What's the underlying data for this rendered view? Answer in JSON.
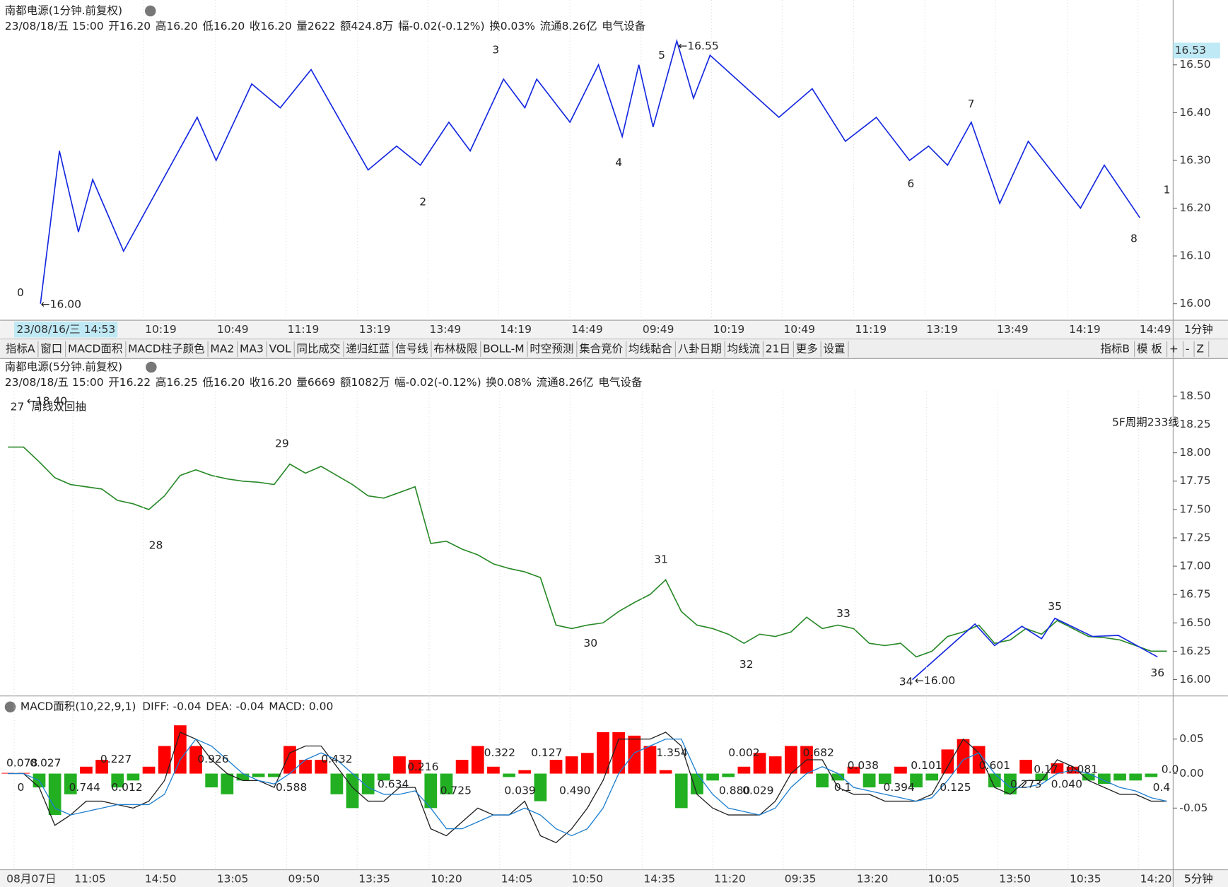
{
  "chart_data": [
    {
      "type": "zigzag",
      "title": "南都电源(1分钟.前复权)",
      "quote": [
        "23/08/18/五 15:00",
        "开16.20",
        "高16.20",
        "低16.20",
        "收16.20",
        "量2622",
        "额424.8万",
        "幅-0.02(-0.12%)",
        "换0.03%",
        "流通8.26亿",
        "电气设备"
      ],
      "x": [
        17,
        25,
        33,
        39,
        52,
        83,
        91,
        106,
        118,
        131,
        155,
        167,
        177,
        189,
        198,
        212,
        221,
        226,
        240,
        252,
        262,
        269,
        275,
        285,
        292,
        299,
        328,
        342,
        356,
        369,
        383,
        391,
        399,
        409,
        421,
        433,
        455,
        465,
        480
      ],
      "values": [
        16.0,
        16.32,
        16.15,
        16.26,
        16.11,
        16.39,
        16.3,
        16.46,
        16.41,
        16.49,
        16.28,
        16.33,
        16.29,
        16.38,
        16.32,
        16.47,
        16.41,
        16.47,
        16.38,
        16.5,
        16.35,
        16.5,
        16.37,
        16.55,
        16.43,
        16.52,
        16.39,
        16.45,
        16.34,
        16.39,
        16.3,
        16.33,
        16.29,
        16.38,
        16.21,
        16.34,
        16.2,
        16.29,
        16.18
      ],
      "color": "#1428e0",
      "xlim": [
        0,
        494
      ],
      "xticks": [
        {
          "value": 67.7,
          "label": "10:19"
        },
        {
          "value": 98,
          "label": "10:49"
        },
        {
          "value": 127.7,
          "label": "11:19"
        },
        {
          "value": 157.8,
          "label": "13:19"
        },
        {
          "value": 187.5,
          "label": "13:49"
        },
        {
          "value": 217.2,
          "label": "14:19"
        },
        {
          "value": 247.2,
          "label": "14:49"
        },
        {
          "value": 277.2,
          "label": "09:49"
        },
        {
          "value": 306.9,
          "label": "10:19"
        },
        {
          "value": 336.6,
          "label": "10:49"
        },
        {
          "value": 366.7,
          "label": "11:19"
        },
        {
          "value": 396.7,
          "label": "13:19"
        },
        {
          "value": 426.4,
          "label": "13:49"
        },
        {
          "value": 456.8,
          "label": "14:19"
        },
        {
          "value": 486.5,
          "label": "14:49"
        }
      ],
      "ylim": [
        15.972,
        16.562
      ],
      "yticks": [
        {
          "value": 16,
          "label": "16.00"
        },
        {
          "value": 16.1,
          "label": "16.10"
        },
        {
          "value": 16.2,
          "label": "16.20"
        },
        {
          "value": 16.3,
          "label": "16.30"
        },
        {
          "value": 16.4,
          "label": "16.40"
        },
        {
          "value": 16.5,
          "label": "16.50"
        }
      ],
      "last_price": 16.53,
      "annotations": [
        "0",
        "2",
        "3",
        "4",
        "5",
        "6",
        "7",
        "8",
        "1",
        "←16.00",
        "←16.55"
      ],
      "cursor_label": "23/08/16/三 14:53",
      "period": "1分钟",
      "grid_x": true
    },
    {
      "type": "line",
      "title": "南都电源(5分钟.前复权)",
      "quote": [
        "23/08/18/五 15:00",
        "开16.22",
        "高16.25",
        "低16.20",
        "收16.20",
        "量6669",
        "额1082万",
        "幅-0.02(-0.12%)",
        "换0.08%",
        "流通8.26亿",
        "电气设备"
      ],
      "x": [
        0,
        1,
        2,
        3,
        4,
        5,
        6,
        7,
        8,
        9,
        10,
        11,
        12,
        13,
        14,
        15,
        16,
        17,
        18,
        19,
        20,
        21,
        22,
        23,
        24,
        25,
        26,
        27,
        28,
        29,
        30,
        31,
        32,
        33,
        34,
        35,
        36,
        37,
        38,
        39,
        40,
        41,
        42,
        43,
        44,
        45,
        46,
        47,
        48,
        49,
        50,
        51,
        52,
        53,
        54,
        55,
        56,
        57,
        58,
        59,
        60,
        61,
        62,
        63,
        64,
        65,
        66,
        67,
        68,
        69,
        70,
        71,
        72,
        73,
        74
      ],
      "values": [
        18.05,
        18.05,
        17.92,
        17.78,
        17.72,
        17.7,
        17.68,
        17.58,
        17.55,
        17.5,
        17.62,
        17.8,
        17.85,
        17.8,
        17.77,
        17.75,
        17.74,
        17.72,
        17.9,
        17.82,
        17.88,
        17.8,
        17.72,
        17.62,
        17.6,
        17.65,
        17.7,
        17.2,
        17.22,
        17.15,
        17.1,
        17.02,
        16.98,
        16.95,
        16.9,
        16.48,
        16.45,
        16.48,
        16.5,
        16.6,
        16.68,
        16.75,
        16.88,
        16.6,
        16.48,
        16.45,
        16.4,
        16.32,
        16.4,
        16.38,
        16.42,
        16.55,
        16.45,
        16.48,
        16.45,
        16.32,
        16.3,
        16.32,
        16.2,
        16.25,
        16.38,
        16.42,
        16.48,
        16.32,
        16.35,
        16.45,
        16.4,
        16.52,
        16.45,
        16.38,
        16.37,
        16.35,
        16.3,
        16.25,
        16.25
      ],
      "color": "#2a8a2a",
      "zigzag_x": [
        57.75,
        61.75,
        63,
        64.75,
        66,
        66.85,
        69.25,
        70.9,
        73.4
      ],
      "zigzag": [
        16.0,
        16.49,
        16.3,
        16.47,
        16.36,
        16.54,
        16.38,
        16.39,
        16.2
      ],
      "zigzag_color": "#1428e0",
      "xlim": [
        -0.5,
        74.4
      ],
      "ylim": [
        15.883,
        18.541
      ],
      "yticks": [
        {
          "value": 16,
          "label": "16.00"
        },
        16.25,
        {
          "value": 16.5,
          "label": "16.50"
        },
        16.75,
        {
          "value": 17,
          "label": "17.00"
        },
        17.25,
        {
          "value": 17.5,
          "label": "17.50"
        },
        17.75,
        {
          "value": 18,
          "label": "18.00"
        },
        18.25,
        {
          "value": 18.5,
          "label": "18.50"
        }
      ],
      "annotations": [
        "27",
        "周线双回抽",
        "28",
        "29",
        "30",
        "31",
        "32",
        "33",
        "34",
        "35",
        "36",
        "5F周期233线",
        "←16.00",
        "←18.40"
      ],
      "period": "5分钟"
    },
    {
      "type": "macd",
      "title": "MACD面积(10,22,9,1)",
      "readouts": [
        "DIFF: -0.04",
        "DEA: -0.04",
        "MACD: 0.00"
      ],
      "x": [
        0,
        1,
        2,
        3,
        4,
        5,
        6,
        7,
        8,
        9,
        10,
        11,
        12,
        13,
        14,
        15,
        16,
        17,
        18,
        19,
        20,
        21,
        22,
        23,
        24,
        25,
        26,
        27,
        28,
        29,
        30,
        31,
        32,
        33,
        34,
        35,
        36,
        37,
        38,
        39,
        40,
        41,
        42,
        43,
        44,
        45,
        46,
        47,
        48,
        49,
        50,
        51,
        52,
        53,
        54,
        55,
        56,
        57,
        58,
        59,
        60,
        61,
        62,
        63,
        64,
        65,
        66,
        67,
        68,
        69,
        70,
        71,
        72,
        73,
        74
      ],
      "histogram": [
        0.001,
        0.001,
        -0.02,
        -0.06,
        -0.03,
        0.01,
        0.02,
        -0.02,
        -0.01,
        0.01,
        0.04,
        0.07,
        0.04,
        -0.02,
        -0.03,
        -0.01,
        -0.005,
        -0.005,
        0.04,
        0.02,
        0.02,
        -0.03,
        -0.05,
        -0.03,
        -0.01,
        0.025,
        0.02,
        -0.05,
        -0.03,
        0.02,
        0.04,
        0.01,
        -0.005,
        0.005,
        -0.04,
        0.02,
        0.025,
        0.03,
        0.06,
        0.06,
        0.055,
        0.04,
        0.005,
        -0.05,
        -0.03,
        -0.01,
        -0.005,
        0.01,
        0.03,
        0.025,
        0.04,
        0.04,
        -0.02,
        -0.01,
        0.01,
        -0.02,
        -0.015,
        0.01,
        -0.02,
        -0.01,
        0.035,
        0.05,
        0.04,
        -0.02,
        -0.03,
        0.02,
        -0.01,
        0.015,
        0.01,
        -0.01,
        -0.015,
        -0.01,
        -0.01,
        -0.005,
        0.0
      ],
      "diff": [
        0.0,
        0.0,
        -0.02,
        -0.075,
        -0.06,
        -0.04,
        -0.04,
        -0.045,
        -0.05,
        -0.04,
        -0.01,
        0.06,
        0.05,
        0.02,
        0.0,
        -0.01,
        -0.01,
        -0.02,
        0.03,
        0.04,
        0.04,
        0.01,
        -0.02,
        -0.04,
        -0.04,
        -0.02,
        -0.02,
        -0.08,
        -0.09,
        -0.07,
        -0.05,
        -0.06,
        -0.06,
        -0.04,
        -0.09,
        -0.1,
        -0.08,
        -0.05,
        -0.01,
        0.05,
        0.05,
        0.05,
        0.06,
        0.04,
        -0.03,
        -0.05,
        -0.06,
        -0.06,
        -0.06,
        -0.04,
        0.0,
        0.02,
        0.02,
        -0.02,
        -0.03,
        -0.03,
        -0.04,
        -0.04,
        -0.04,
        -0.03,
        0.01,
        0.05,
        0.03,
        -0.02,
        -0.03,
        -0.01,
        -0.01,
        0.02,
        0.01,
        -0.01,
        -0.02,
        -0.03,
        -0.03,
        -0.04,
        -0.04
      ],
      "dea": [
        0.0,
        0.0,
        -0.01,
        -0.05,
        -0.06,
        -0.055,
        -0.05,
        -0.045,
        -0.045,
        -0.045,
        -0.03,
        0.02,
        0.05,
        0.04,
        0.02,
        0.0,
        -0.01,
        -0.015,
        0.0,
        0.02,
        0.03,
        0.02,
        0.0,
        -0.02,
        -0.03,
        -0.03,
        -0.025,
        -0.05,
        -0.08,
        -0.08,
        -0.07,
        -0.06,
        -0.06,
        -0.05,
        -0.06,
        -0.08,
        -0.09,
        -0.08,
        -0.05,
        0.0,
        0.03,
        0.04,
        0.05,
        0.05,
        0.0,
        -0.03,
        -0.05,
        -0.055,
        -0.06,
        -0.05,
        -0.02,
        0.0,
        0.01,
        0.0,
        -0.02,
        -0.025,
        -0.03,
        -0.035,
        -0.04,
        -0.035,
        -0.01,
        0.02,
        0.03,
        0.0,
        -0.02,
        -0.02,
        -0.015,
        0.0,
        0.005,
        0.0,
        -0.01,
        -0.02,
        -0.025,
        -0.035,
        -0.04
      ],
      "positive_color": "#ff0000",
      "negative_color": "#22b022",
      "diff_color": "#222222",
      "dea_color": "#1e7fd0",
      "area_labels": {
        "positive": [
          "0.078",
          "0.027",
          "0.227",
          "0.926",
          "0.432",
          "0.216",
          "0.322",
          "0.127",
          "1.354",
          "0.002",
          "0.682",
          "0.038",
          "0.101",
          "0.601",
          "0.17",
          "0.081",
          "0.0"
        ],
        "negative": [
          "0",
          "0.744",
          "0.012",
          "0.588",
          "0.634",
          "0.725",
          "0.039",
          "0.490",
          "0.880",
          "0.029",
          "0.1",
          "0.394",
          "0.125",
          "0.273",
          "0.040",
          "0.4"
        ]
      },
      "xlim": [
        -0.5,
        74.4
      ],
      "xticks": [
        {
          "value": 1.5,
          "label": "08月07日"
        },
        {
          "value": 5.25,
          "label": "11:05"
        },
        {
          "value": 9.75,
          "label": "14:50"
        },
        {
          "value": 14.35,
          "label": "13:05"
        },
        {
          "value": 18.9,
          "label": "09:50"
        },
        {
          "value": 23.4,
          "label": "13:35"
        },
        {
          "value": 28,
          "label": "10:20"
        },
        {
          "value": 32.5,
          "label": "14:05"
        },
        {
          "value": 37,
          "label": "10:50"
        },
        {
          "value": 41.6,
          "label": "14:35"
        },
        {
          "value": 46.1,
          "label": "11:20"
        },
        {
          "value": 50.6,
          "label": "09:35"
        },
        {
          "value": 55.2,
          "label": "13:20"
        },
        {
          "value": 59.75,
          "label": "10:05"
        },
        {
          "value": 64.3,
          "label": "13:50"
        },
        {
          "value": 68.8,
          "label": "10:35"
        },
        {
          "value": 73.3,
          "label": "14:20"
        }
      ],
      "ylim": [
        -0.136,
        0.083
      ],
      "yticks": [
        0.05,
        {
          "value": 0,
          "label": "0.00"
        },
        -0.05
      ]
    }
  ],
  "toolbar": {
    "left": [
      "指标A",
      "窗口",
      "MACD面积",
      "MACD柱子颜色",
      "MA2",
      "MA3",
      "VOL",
      "同比成交",
      "递归红蓝",
      "信号线",
      "布林极限",
      "BOLL-M",
      "时空预测",
      "集合竞价",
      "均线黏合",
      "八卦日期",
      "均线流",
      "21日",
      "更多",
      "设置"
    ],
    "right": [
      "指标B",
      "模 板",
      "+",
      "-",
      "Z"
    ]
  }
}
